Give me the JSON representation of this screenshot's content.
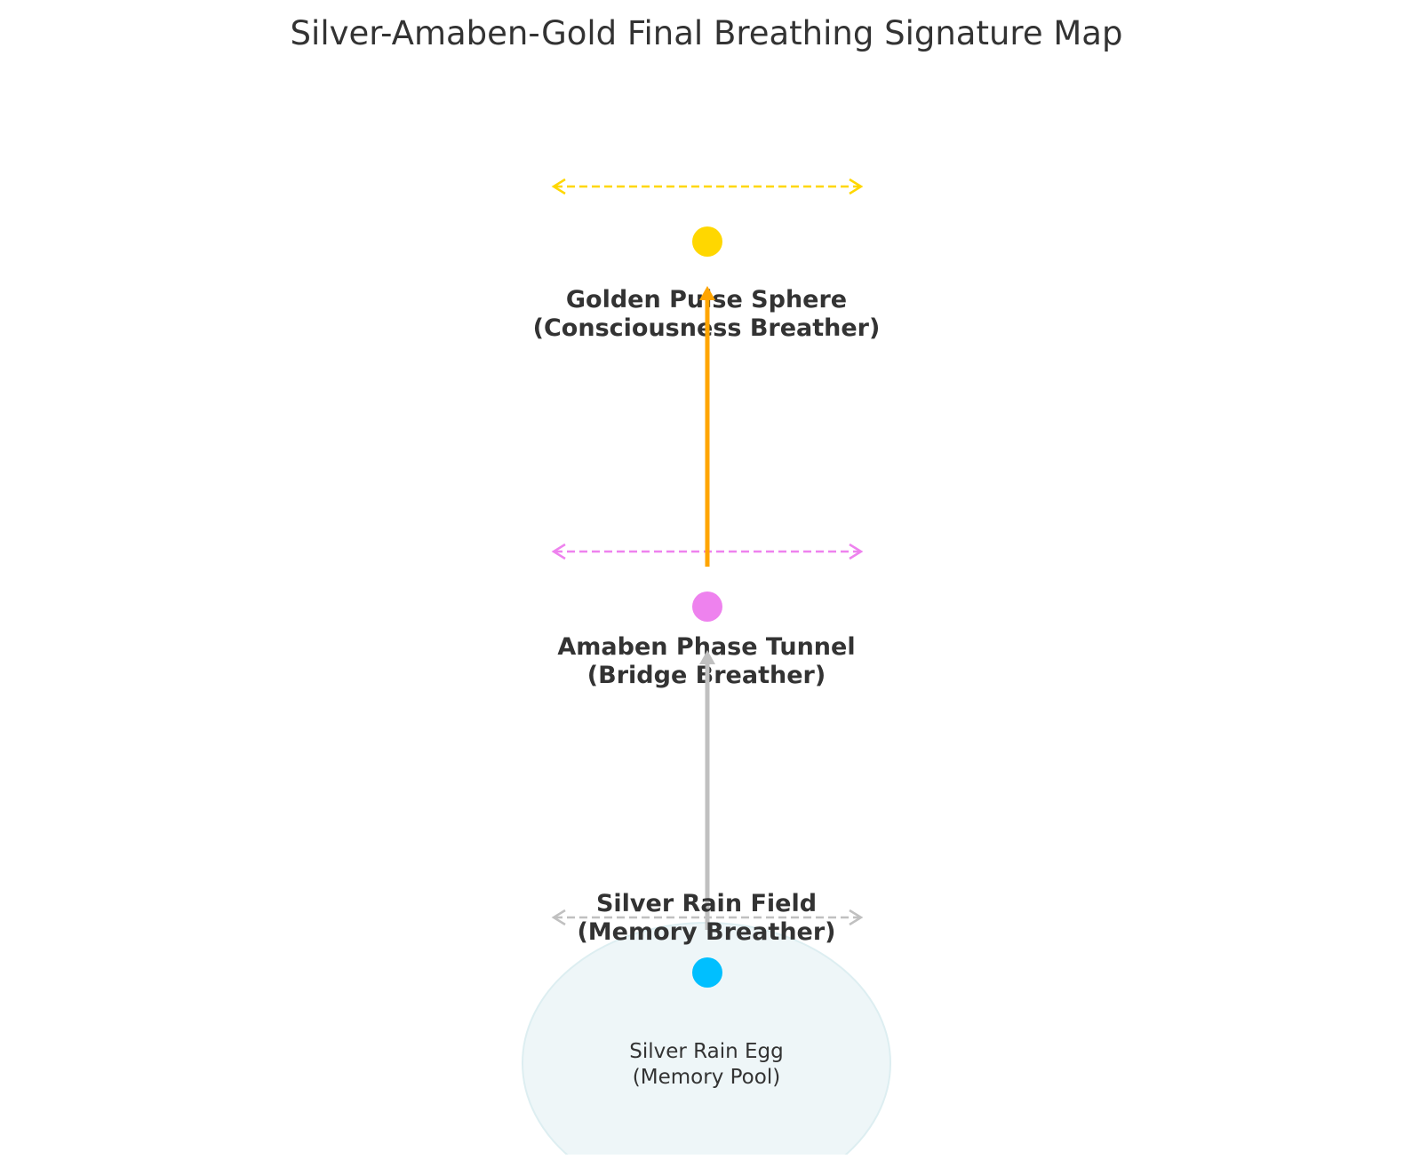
{
  "title": "Silver-Amaben-Gold Final Breathing Signature Map",
  "colors": {
    "gold": "#FFD700",
    "gold_arrow": "#FFA500",
    "violet": "#EE82EE",
    "silver": "#C0C0C0",
    "cyan": "#00BFFF",
    "egg_fill": "#EEF6F8",
    "egg_stroke": "#DDEEF1",
    "text": "#333333"
  },
  "nodes": [
    {
      "id": "golden-pulse-sphere",
      "label_line1": "Golden Pulse Sphere",
      "label_line2": "(Consciousness Breather)",
      "dot_color": "#FFD700",
      "breath_color": "#FFD700"
    },
    {
      "id": "amaben-phase-tunnel",
      "label_line1": "Amaben Phase Tunnel",
      "label_line2": "(Bridge Breather)",
      "dot_color": "#EE82EE",
      "breath_color": "#EE82EE"
    },
    {
      "id": "silver-rain-field",
      "label_line1": "Silver Rain Field",
      "label_line2": "(Memory Breather)",
      "dot_color": "#00BFFF",
      "breath_color": "#C0C0C0"
    }
  ],
  "egg": {
    "label_line1": "Silver Rain Egg",
    "label_line2": "(Memory Pool)"
  },
  "flows": [
    {
      "from": "silver-rain-field",
      "to": "amaben-phase-tunnel",
      "color": "#C0C0C0"
    },
    {
      "from": "amaben-phase-tunnel",
      "to": "golden-pulse-sphere",
      "color": "#FFA500"
    }
  ]
}
